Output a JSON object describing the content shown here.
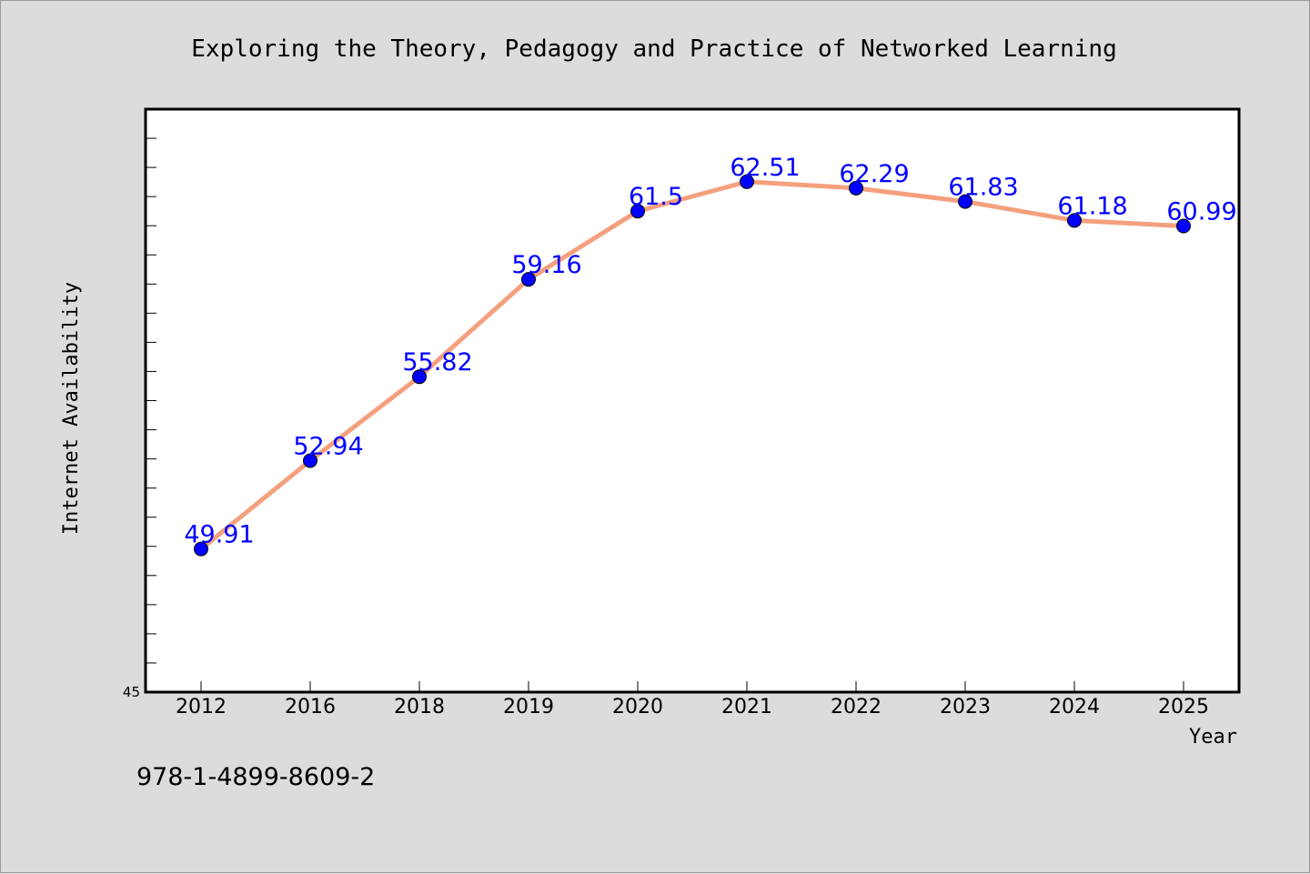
{
  "chart_data": {
    "type": "line",
    "title": "Exploring the Theory, Pedagogy and Practice of Networked Learning",
    "xlabel": "Year",
    "ylabel": "Internet Availability",
    "categories": [
      "2012",
      "2016",
      "2018",
      "2019",
      "2020",
      "2021",
      "2022",
      "2023",
      "2024",
      "2025"
    ],
    "series": [
      {
        "values": [
          49.91,
          52.94,
          55.82,
          59.16,
          61.5,
          62.51,
          62.29,
          61.83,
          61.18,
          60.99
        ],
        "labels": [
          "49.91",
          "52.94",
          "55.82",
          "59.16",
          "61.5",
          "62.51",
          "62.29",
          "61.83",
          "61.18",
          "60.99"
        ]
      }
    ],
    "ylim": [
      45,
      65
    ],
    "y_tick_labels": [
      "45"
    ],
    "y_minor_tick_step": 1,
    "grid": false,
    "colors": {
      "line": "#f4a07e",
      "marker": "#0000ff",
      "label": "#0000ff",
      "background": "#dcdcdc",
      "plot_bg": "#ffffff"
    }
  },
  "footer": {
    "isbn": "978-1-4899-8609-2"
  }
}
